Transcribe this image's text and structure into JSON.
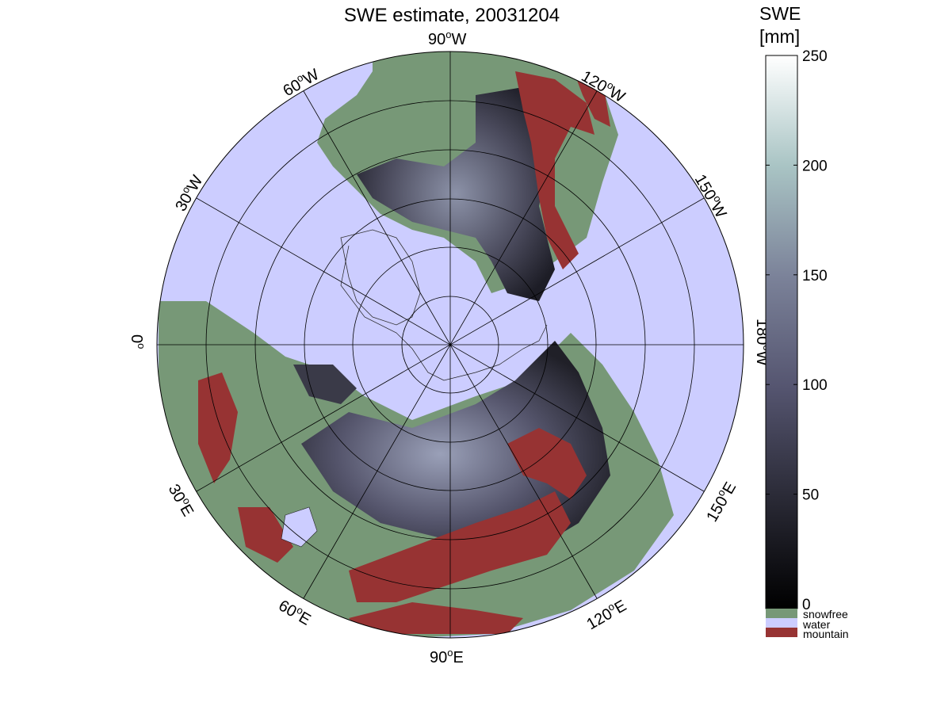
{
  "title": "SWE estimate, 20031204",
  "colorbar": {
    "title_line1": "SWE",
    "title_line2": "[mm]",
    "ticks": [
      "0",
      "50",
      "100",
      "150",
      "200",
      "250"
    ],
    "range": [
      0,
      250
    ],
    "categories": [
      {
        "label": "snowfree",
        "color": "#779877"
      },
      {
        "label": "water",
        "color": "#cccdff"
      },
      {
        "label": "mountain",
        "color": "#973333"
      }
    ]
  },
  "map": {
    "projection": "north-polar stereographic",
    "longitude_labels": [
      {
        "text": "90°W",
        "base": "90",
        "sup": "o",
        "suffix": "W"
      },
      {
        "text": "120°W",
        "base": "120",
        "sup": "o",
        "suffix": "W"
      },
      {
        "text": "150°W",
        "base": "150",
        "sup": "o",
        "suffix": "W"
      },
      {
        "text": "180°W",
        "base": "180",
        "sup": "o",
        "suffix": "W"
      },
      {
        "text": "150°E",
        "base": "150",
        "sup": "o",
        "suffix": "E"
      },
      {
        "text": "120°E",
        "base": "120",
        "sup": "o",
        "suffix": "E"
      },
      {
        "text": "90°E",
        "base": "90",
        "sup": "o",
        "suffix": "E"
      },
      {
        "text": "60°E",
        "base": "60",
        "sup": "o",
        "suffix": "E"
      },
      {
        "text": "30°E",
        "base": "30",
        "sup": "o",
        "suffix": "E"
      },
      {
        "text": "0°",
        "base": "0",
        "sup": "o",
        "suffix": ""
      },
      {
        "text": "30°W",
        "base": "30",
        "sup": "o",
        "suffix": "W"
      },
      {
        "text": "60°W",
        "base": "60",
        "sup": "o",
        "suffix": "W"
      }
    ],
    "colors": {
      "water": "#cccdff",
      "snowfree": "#779877",
      "mountain": "#973333",
      "snow_dark": "#2a2a36",
      "snow_mid": "#5e5e78",
      "snow_light": "#9aa4b8"
    }
  }
}
